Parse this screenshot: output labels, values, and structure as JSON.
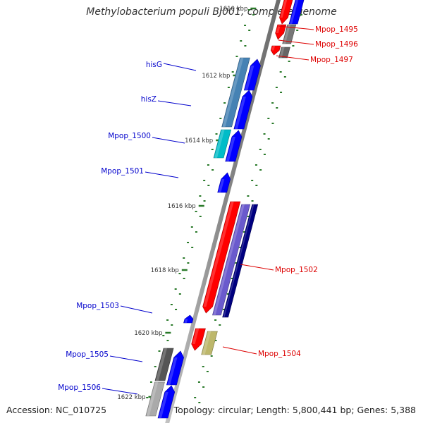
{
  "title": "Methylobacterium populi BJ001, complete genome",
  "footer": {
    "accession": "Accession: NC_010725",
    "summary": "Topology: circular; Length: 5,800,441 bp; Genes: 5,388"
  },
  "colors": {
    "forward_label": "#0000cc",
    "reverse_label": "#dd0000",
    "backbone": "#888888",
    "tick_mark": "#2a7a2a"
  },
  "ticks": [
    "1610 kbp",
    "1612 kbp",
    "1614 kbp",
    "1616 kbp",
    "1618 kbp",
    "1620 kbp",
    "1622 kbp"
  ],
  "gene_labels": [
    {
      "name": "Mpop_1495",
      "strand": "reverse"
    },
    {
      "name": "Mpop_1496",
      "strand": "reverse"
    },
    {
      "name": "Mpop_1497",
      "strand": "reverse"
    },
    {
      "name": "hisG",
      "strand": "forward"
    },
    {
      "name": "hisZ",
      "strand": "forward"
    },
    {
      "name": "Mpop_1500",
      "strand": "forward"
    },
    {
      "name": "Mpop_1501",
      "strand": "forward"
    },
    {
      "name": "Mpop_1502",
      "strand": "reverse"
    },
    {
      "name": "Mpop_1503",
      "strand": "forward"
    },
    {
      "name": "Mpop_1504",
      "strand": "reverse"
    },
    {
      "name": "Mpop_1505",
      "strand": "forward"
    },
    {
      "name": "Mpop_1506",
      "strand": "forward"
    }
  ]
}
